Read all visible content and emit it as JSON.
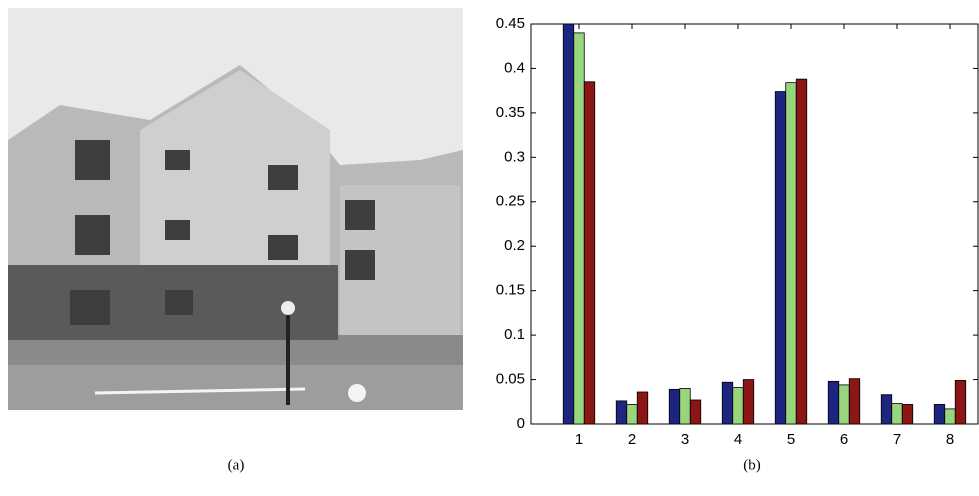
{
  "image": {
    "caption": "(a)"
  },
  "chart_data": {
    "type": "bar",
    "caption": "(b)",
    "categories": [
      "1",
      "2",
      "3",
      "4",
      "5",
      "6",
      "7",
      "8"
    ],
    "series": [
      {
        "color": "#1c2580",
        "values": [
          0.45,
          0.026,
          0.039,
          0.047,
          0.374,
          0.048,
          0.033,
          0.022
        ]
      },
      {
        "color": "#98d67e",
        "values": [
          0.44,
          0.022,
          0.04,
          0.041,
          0.384,
          0.044,
          0.023,
          0.017
        ]
      },
      {
        "color": "#8c1616",
        "values": [
          0.385,
          0.036,
          0.027,
          0.05,
          0.388,
          0.051,
          0.022,
          0.049
        ]
      }
    ],
    "ylim": [
      0,
      0.45
    ],
    "yticks": [
      0,
      0.05,
      0.1,
      0.15,
      0.2,
      0.25,
      0.3,
      0.35,
      0.4,
      0.45
    ],
    "grid": false
  }
}
